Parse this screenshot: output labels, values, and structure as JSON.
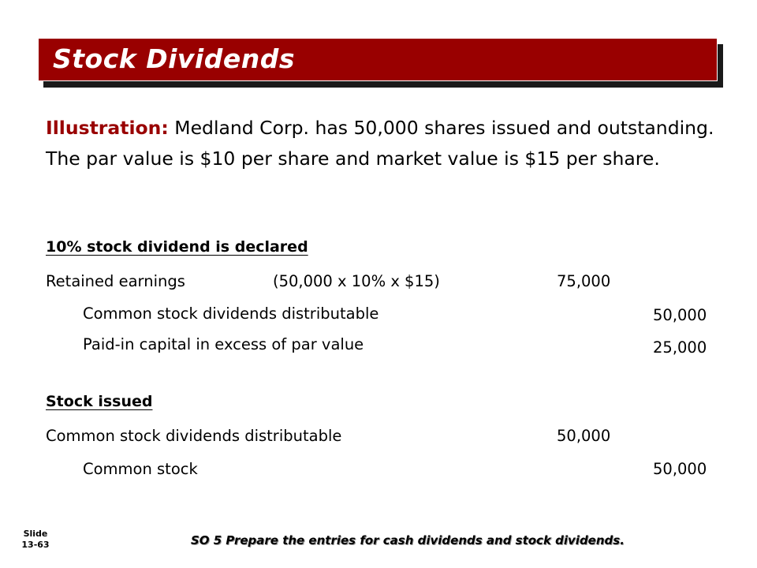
{
  "slide": {
    "title": "Stock Dividends",
    "intro_label": "Illustration:",
    "intro_text": " Medland Corp. has 50,000 shares issued and outstanding.  The par value is $10 per share and market value is $15 per share.",
    "sections": [
      {
        "heading": "10% stock dividend is declared",
        "entries": [
          {
            "account": "Retained earnings",
            "note": "(50,000 x 10% x $15)",
            "debit": "75,000",
            "credit": ""
          },
          {
            "account": "Common stock dividends distributable",
            "note": "",
            "debit": "",
            "credit": "50,000"
          },
          {
            "account": "Paid-in capital in excess of par value",
            "note": "",
            "debit": "",
            "credit": "25,000"
          }
        ]
      },
      {
        "heading": "Stock issued",
        "entries": [
          {
            "account": "Common stock dividends distributable",
            "note": "",
            "debit": "50,000",
            "credit": ""
          },
          {
            "account": "Common stock",
            "note": "",
            "debit": "",
            "credit": "50,000"
          }
        ]
      }
    ]
  },
  "footer": {
    "slide_label": "Slide",
    "slide_number": "13-63",
    "objective": "SO 5  Prepare the entries for cash dividends and stock dividends."
  },
  "colors": {
    "title_bar": "#990000",
    "label_red": "#990000"
  }
}
